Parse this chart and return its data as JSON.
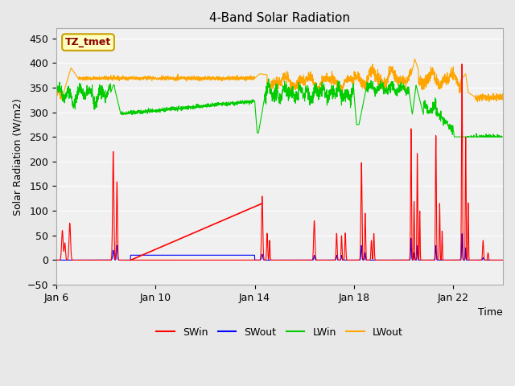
{
  "title": "4-Band Solar Radiation",
  "xlabel": "Time",
  "ylabel": "Solar Radiation (W/m2)",
  "ylim": [
    -50,
    470
  ],
  "yticks": [
    -50,
    0,
    50,
    100,
    150,
    200,
    250,
    300,
    350,
    400,
    450
  ],
  "xticklabels": [
    "Jan 6",
    "Jan 10",
    "Jan 14",
    "Jan 18",
    "Jan 22"
  ],
  "xtick_positions": [
    0,
    4,
    8,
    12,
    16
  ],
  "annotation_text": "TZ_tmet",
  "annotation_color": "#8B0000",
  "annotation_bg": "#FFFFC0",
  "annotation_border": "#C8A000",
  "colors": {
    "SWin": "#FF0000",
    "SWout": "#0000FF",
    "LWin": "#00CC00",
    "LWout": "#FFA500"
  },
  "legend_labels": [
    "SWin",
    "SWout",
    "LWin",
    "LWout"
  ],
  "bg_color": "#E8E8E8",
  "axes_bg": "#F0F0F0",
  "n_days": 18
}
